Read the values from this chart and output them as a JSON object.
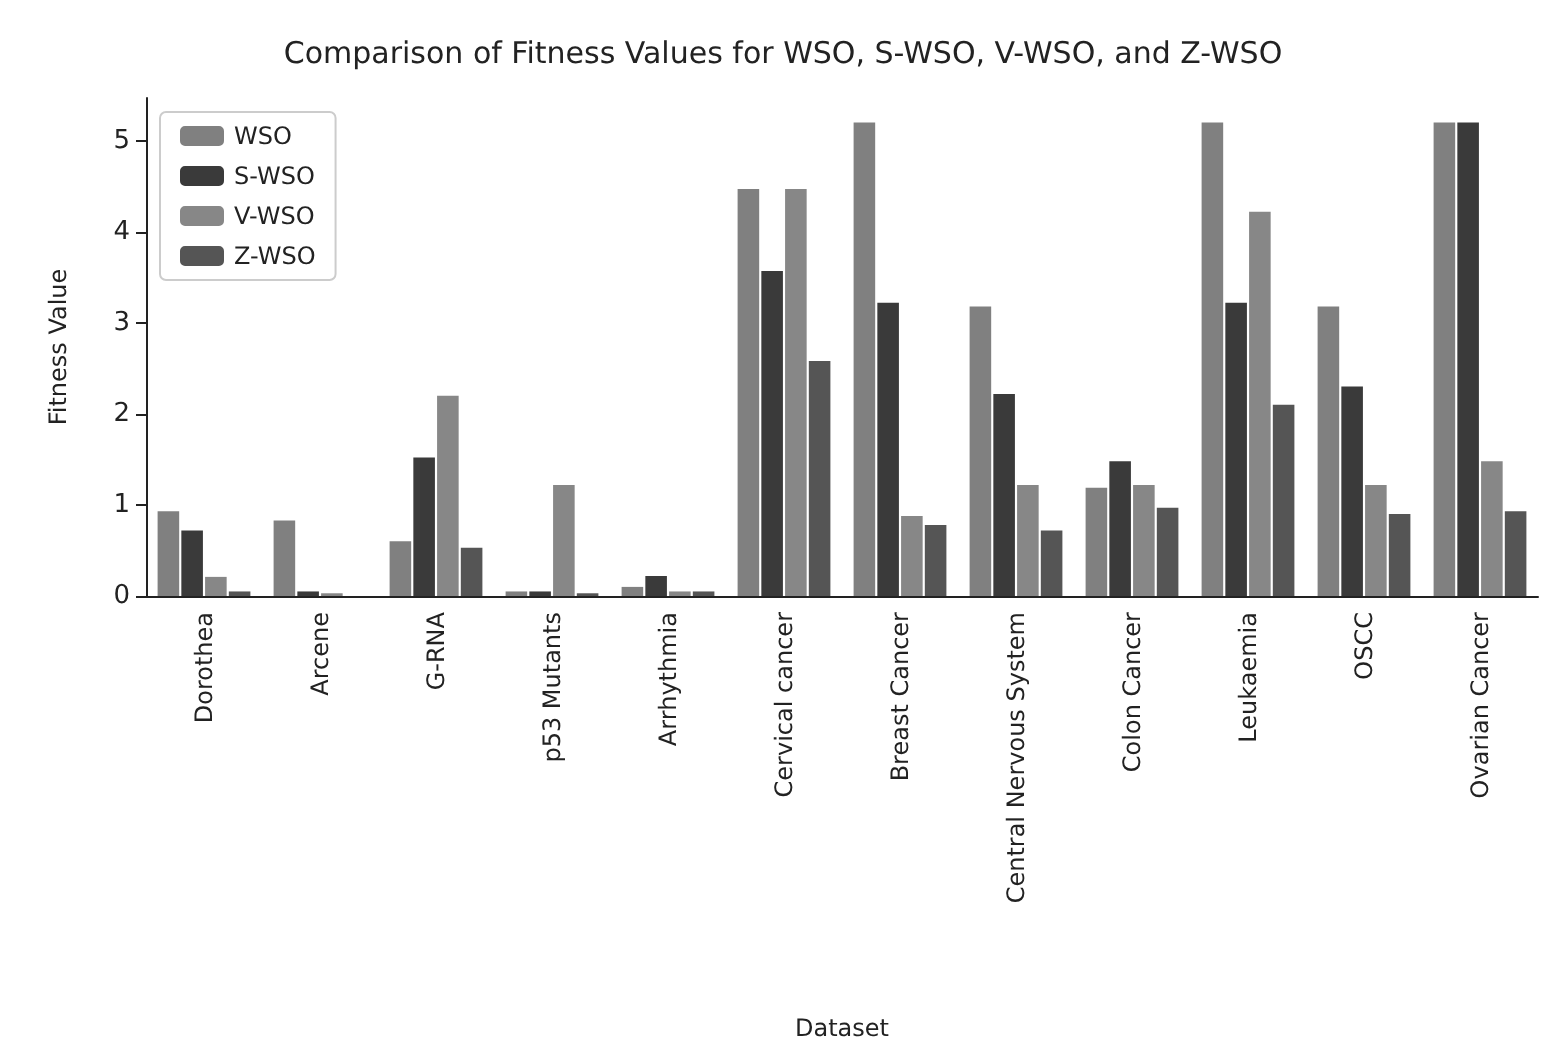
{
  "chart_data": {
    "type": "bar",
    "title": "Comparison of Fitness Values for WSO, S-WSO, V-WSO, and Z-WSO",
    "xlabel": "Dataset",
    "ylabel": "Fitness Value",
    "categories": [
      "Dorothea",
      "Arcene",
      "G-RNA",
      "p53 Mutants",
      "Arrhythmia",
      "Cervical cancer",
      "Breast Cancer",
      "Central Nervous System",
      "Colon Cancer",
      "Leukaemia",
      "OSCC",
      "Ovarian Cancer"
    ],
    "series": [
      {
        "name": "WSO",
        "color": "#808080",
        "values": [
          0.93,
          0.83,
          0.6,
          0.05,
          0.1,
          4.47,
          5.2,
          3.18,
          1.19,
          5.2,
          3.18,
          5.2
        ]
      },
      {
        "name": "S-WSO",
        "color": "#3a3a3a",
        "values": [
          0.72,
          0.05,
          1.52,
          0.05,
          0.22,
          3.57,
          3.22,
          2.22,
          1.48,
          3.22,
          2.3,
          5.2
        ]
      },
      {
        "name": "V-WSO",
        "color": "#878787",
        "values": [
          0.21,
          0.03,
          2.2,
          1.22,
          0.05,
          4.47,
          0.88,
          1.22,
          1.22,
          4.22,
          1.22,
          1.48
        ]
      },
      {
        "name": "Z-WSO",
        "color": "#555555",
        "values": [
          0.05,
          null,
          0.53,
          0.03,
          0.05,
          2.58,
          0.78,
          0.72,
          0.97,
          2.1,
          0.9,
          0.93
        ]
      }
    ],
    "ylim": [
      0,
      5.47
    ],
    "yticks": [
      0,
      1,
      2,
      3,
      4,
      5
    ],
    "grid": false,
    "legend": "top left"
  }
}
